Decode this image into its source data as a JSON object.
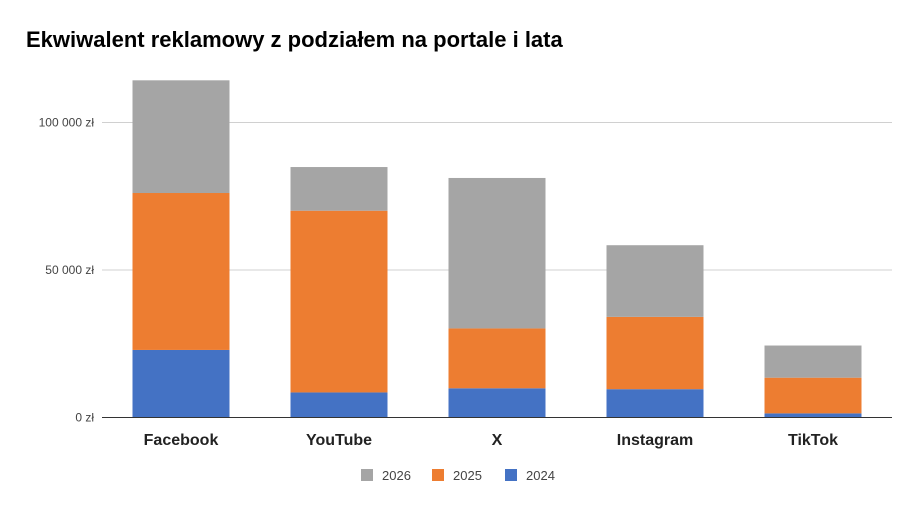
{
  "chart_data": {
    "type": "bar",
    "stacked": true,
    "title": "Ekwiwalent reklamowy z podziałem na portale i lata",
    "xlabel": "",
    "ylabel": "",
    "categories": [
      "Facebook",
      "YouTube",
      "X",
      "Instagram",
      "TikTok"
    ],
    "series": [
      {
        "name": "2024",
        "color": "#4472c4",
        "values": [
          22900,
          8500,
          9900,
          9600,
          1400
        ]
      },
      {
        "name": "2025",
        "color": "#ed7d31",
        "values": [
          53200,
          61600,
          20300,
          24500,
          12100
        ]
      },
      {
        "name": "2026",
        "color": "#a5a5a5",
        "values": [
          38200,
          14800,
          51000,
          24300,
          10900
        ]
      }
    ],
    "ylim": [
      0,
      120000
    ],
    "yticks": [
      0,
      50000,
      100000
    ],
    "ytick_labels": [
      "0 zł",
      "50 000 zł",
      "100 000 zł"
    ],
    "grid": true,
    "legend_position": "bottom",
    "legend_order": [
      "2026",
      "2025",
      "2024"
    ]
  }
}
